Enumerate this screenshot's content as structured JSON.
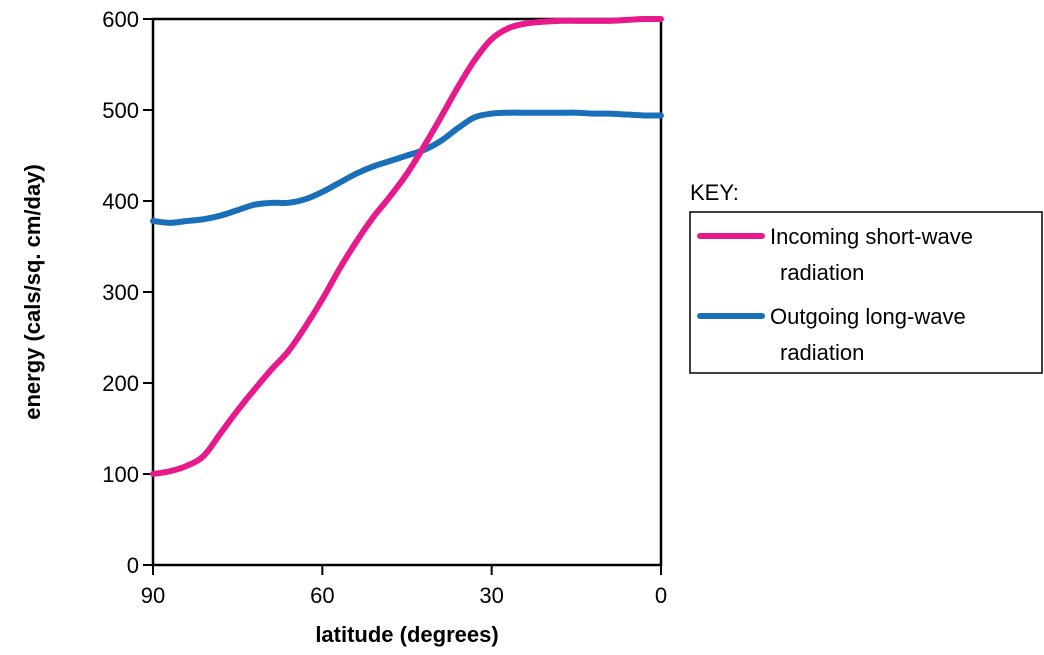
{
  "chart_data": {
    "type": "line",
    "title": "",
    "xlabel": "latitude (degrees)",
    "ylabel": "energy (cals/sq. cm/day)",
    "xlim": [
      90,
      0
    ],
    "ylim": [
      0,
      600
    ],
    "x_ticks": [
      90,
      60,
      30,
      0
    ],
    "y_ticks": [
      0,
      100,
      200,
      300,
      400,
      500,
      600
    ],
    "grid": false,
    "legend": {
      "title": "KEY:",
      "placement": "right",
      "entries": [
        {
          "lines": [
            "Incoming short-wave",
            "radiation"
          ],
          "color": "#e8198b"
        },
        {
          "lines": [
            "Outgoing long-wave",
            "radiation"
          ],
          "color": "#1a70b8"
        }
      ]
    },
    "series": [
      {
        "color": "#e8198b",
        "points": [
          [
            90,
            100
          ],
          [
            87,
            103
          ],
          [
            84,
            109
          ],
          [
            81,
            120
          ],
          [
            78,
            145
          ],
          [
            75,
            170
          ],
          [
            72,
            193
          ],
          [
            69,
            215
          ],
          [
            66,
            235
          ],
          [
            63,
            262
          ],
          [
            60,
            292
          ],
          [
            57,
            325
          ],
          [
            54,
            355
          ],
          [
            51,
            382
          ],
          [
            48,
            405
          ],
          [
            45,
            430
          ],
          [
            42,
            460
          ],
          [
            39,
            492
          ],
          [
            36,
            525
          ],
          [
            33,
            555
          ],
          [
            30,
            578
          ],
          [
            27,
            590
          ],
          [
            24,
            595
          ],
          [
            21,
            597
          ],
          [
            18,
            598
          ],
          [
            15,
            598
          ],
          [
            12,
            598
          ],
          [
            9,
            598
          ],
          [
            6,
            599
          ],
          [
            3,
            600
          ],
          [
            0,
            600
          ]
        ]
      },
      {
        "color": "#1a70b8",
        "points": [
          [
            90,
            378
          ],
          [
            87,
            376
          ],
          [
            84,
            378
          ],
          [
            81,
            380
          ],
          [
            78,
            384
          ],
          [
            75,
            390
          ],
          [
            72,
            396
          ],
          [
            69,
            398
          ],
          [
            66,
            398
          ],
          [
            63,
            402
          ],
          [
            60,
            410
          ],
          [
            57,
            420
          ],
          [
            54,
            430
          ],
          [
            51,
            438
          ],
          [
            48,
            444
          ],
          [
            45,
            450
          ],
          [
            42,
            456
          ],
          [
            39,
            466
          ],
          [
            36,
            480
          ],
          [
            33,
            492
          ],
          [
            30,
            496
          ],
          [
            27,
            497
          ],
          [
            24,
            497
          ],
          [
            21,
            497
          ],
          [
            18,
            497
          ],
          [
            15,
            497
          ],
          [
            12,
            496
          ],
          [
            9,
            496
          ],
          [
            6,
            495
          ],
          [
            3,
            494
          ],
          [
            0,
            494
          ]
        ]
      }
    ]
  }
}
